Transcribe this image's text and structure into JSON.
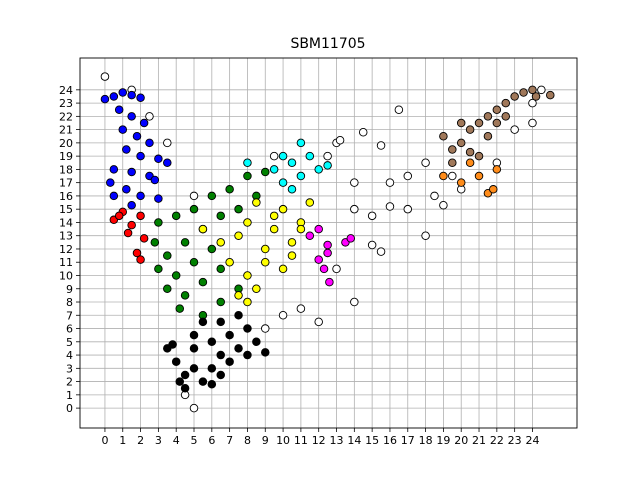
{
  "chart_data": {
    "type": "scatter",
    "title": "SBM11705",
    "xlim": [
      -1.4,
      26.5
    ],
    "ylim": [
      -1.5,
      26.4
    ],
    "xticks": [
      0,
      1,
      2,
      3,
      4,
      5,
      6,
      7,
      8,
      9,
      10,
      11,
      12,
      13,
      14,
      15,
      16,
      17,
      18,
      19,
      20,
      21,
      22,
      23,
      24
    ],
    "yticks": [
      0,
      1,
      2,
      3,
      4,
      5,
      6,
      7,
      8,
      9,
      10,
      11,
      12,
      13,
      14,
      15,
      16,
      17,
      18,
      19,
      20,
      21,
      22,
      23,
      24
    ],
    "grid": true,
    "series": [
      {
        "color": "#ffffff",
        "x": [
          5,
          4.5,
          0,
          1.5,
          2.5,
          3.5,
          5,
          9,
          10,
          11,
          12,
          13,
          14,
          14,
          15,
          14.5,
          15.5,
          16.5,
          16,
          17,
          17,
          18,
          18,
          18.5,
          19,
          19.5,
          13,
          12.5,
          9.5,
          15,
          14,
          15.5,
          16,
          22,
          23,
          24,
          24,
          24.5,
          13.2,
          20
        ],
        "values": [
          0,
          1,
          25,
          24,
          22,
          20,
          16,
          6,
          7,
          7.5,
          6.5,
          10.5,
          8,
          15,
          14.5,
          20.8,
          19.8,
          22.5,
          17,
          17.5,
          15,
          13,
          18.5,
          16,
          15.3,
          17.5,
          20,
          19,
          19,
          12.3,
          17,
          11.8,
          15.2,
          18.5,
          21,
          21.5,
          23,
          24,
          20.2,
          16.5
        ]
      },
      {
        "color": "#0000ff",
        "x": [
          0,
          0.5,
          1,
          1.5,
          2,
          0.8,
          1.5,
          2.2,
          1,
          1.8,
          2.5,
          1.2,
          2,
          3,
          3.5,
          0.5,
          1.5,
          2.5,
          0.3,
          1.2,
          2,
          3,
          0.5,
          2.8,
          1.5
        ],
        "values": [
          23.3,
          23.5,
          23.8,
          23.6,
          23.4,
          22.5,
          22,
          21.5,
          21,
          20.5,
          20,
          19.5,
          19,
          18.8,
          18.5,
          18,
          17.8,
          17.5,
          17,
          16.5,
          16,
          15.8,
          16,
          17.2,
          15.3
        ]
      },
      {
        "color": "#ff0000",
        "x": [
          0.5,
          1,
          1.5,
          2,
          1.3,
          2.2,
          1.8,
          2,
          0.8
        ],
        "values": [
          14.2,
          14.8,
          13.8,
          14.5,
          13.2,
          12.8,
          11.7,
          11.2,
          14.5
        ]
      },
      {
        "color": "#008000",
        "x": [
          3,
          4,
          5,
          6,
          7,
          8,
          2.8,
          3.5,
          4.5,
          5.5,
          6.5,
          7.5,
          3,
          4,
          5,
          6,
          3.5,
          4.5,
          5.5,
          6.5,
          4.2,
          5.5,
          6.5,
          7.5,
          8.5,
          9
        ],
        "values": [
          14,
          14.5,
          15,
          16,
          16.5,
          17.5,
          12.5,
          11.5,
          12.5,
          13.5,
          14.5,
          15,
          10.5,
          10,
          11,
          12,
          9,
          8.5,
          9.5,
          10.5,
          7.5,
          7,
          8,
          9,
          16,
          17.8
        ]
      },
      {
        "color": "#000000",
        "x": [
          3.5,
          4,
          4.5,
          4.5,
          5,
          5,
          5.5,
          6,
          6,
          6.5,
          6.5,
          7,
          7,
          7.5,
          8,
          8,
          8.5,
          9,
          5,
          5.5,
          6.5,
          7.5,
          4.2,
          6,
          3.8
        ],
        "values": [
          4.5,
          3.5,
          2.5,
          1.5,
          3,
          4.5,
          2,
          3,
          5,
          4,
          2.5,
          3.5,
          5.5,
          4.5,
          6,
          4,
          5,
          4.2,
          5.5,
          6.5,
          6.5,
          7,
          2,
          1.8,
          4.8
        ]
      },
      {
        "color": "#ffff00",
        "x": [
          5.5,
          6.5,
          7,
          7.5,
          8,
          8.5,
          9,
          9.5,
          10,
          10.5,
          11,
          11.5,
          8,
          8.5,
          9,
          10,
          10.5,
          7.5,
          8,
          9.5,
          11
        ],
        "values": [
          13.5,
          12.5,
          11,
          13,
          14,
          15.5,
          12,
          13.5,
          15,
          12.5,
          14,
          15.5,
          10,
          9,
          11,
          10.5,
          11.5,
          8.5,
          8,
          14.5,
          13.5
        ]
      },
      {
        "color": "#00ffff",
        "x": [
          10,
          10.5,
          11,
          11.5,
          12,
          10,
          10.5,
          9.5,
          11,
          12.5,
          8
        ],
        "values": [
          19,
          18.5,
          20,
          19,
          18,
          17,
          16.5,
          18,
          17.5,
          18.3,
          18.5
        ]
      },
      {
        "color": "#ff00ff",
        "x": [
          12,
          12.5,
          12,
          13.5,
          13.8,
          12.5,
          12.6,
          11.5,
          12.3
        ],
        "values": [
          13.5,
          12.3,
          11.2,
          12.5,
          12.8,
          11.7,
          9.5,
          13,
          10.5
        ]
      },
      {
        "color": "#a0785a",
        "x": [
          19,
          19.5,
          20,
          20.5,
          21,
          21.5,
          22,
          22.5,
          23,
          23.5,
          24.2,
          25,
          20.5,
          21.5,
          22,
          20,
          21,
          22.5,
          19.5,
          24
        ],
        "values": [
          20.5,
          19.5,
          20,
          21,
          21.5,
          22,
          22.5,
          23,
          23.5,
          23.8,
          23.5,
          23.6,
          19.3,
          20.5,
          21.5,
          21.5,
          19,
          22,
          18.5,
          24
        ]
      },
      {
        "color": "#ff8c1a",
        "x": [
          19,
          20,
          21,
          21.5,
          22,
          20.5,
          21.8
        ],
        "values": [
          17.5,
          17,
          17.5,
          16.2,
          18,
          18.5,
          16.5
        ]
      }
    ]
  }
}
